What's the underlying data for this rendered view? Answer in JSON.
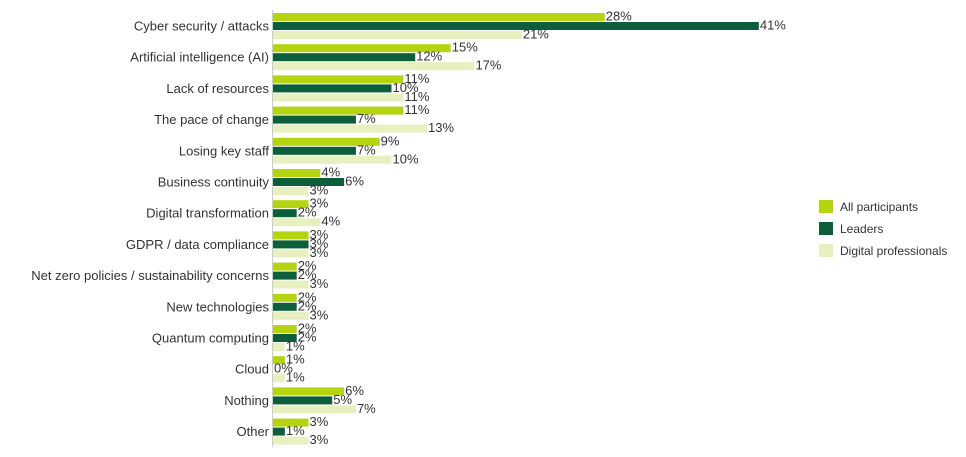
{
  "chart_data": {
    "type": "bar",
    "orientation": "horizontal",
    "categories": [
      "Cyber security / attacks",
      "Artificial intelligence (AI)",
      "Lack of resources",
      "The pace of change",
      "Losing key staff",
      "Business continuity",
      "Digital transformation",
      "GDPR / data compliance",
      "Net zero policies / sustainability concerns",
      "New technologies",
      "Quantum computing",
      "Cloud",
      "Nothing",
      "Other"
    ],
    "series": [
      {
        "name": "All participants",
        "color": "#b5d30f",
        "values": [
          28,
          15,
          11,
          11,
          9,
          4,
          3,
          3,
          2,
          2,
          2,
          1,
          6,
          3
        ]
      },
      {
        "name": "Leaders",
        "color": "#0d5e3a",
        "values": [
          41,
          12,
          10,
          7,
          7,
          6,
          2,
          3,
          2,
          2,
          2,
          0,
          5,
          1
        ]
      },
      {
        "name": "Digital professionals",
        "color": "#e8f0c0",
        "values": [
          21,
          17,
          11,
          13,
          10,
          3,
          4,
          3,
          3,
          3,
          1,
          1,
          7,
          3
        ]
      }
    ],
    "value_suffix": "%",
    "legend_position": "right",
    "grid": false
  }
}
